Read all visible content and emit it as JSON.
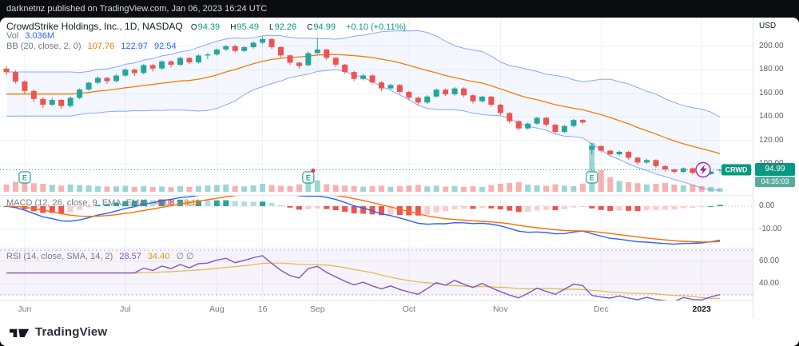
{
  "publish_bar": {
    "text": "darknetnz published on TradingView.com, Jan 06, 2023 16:24 UTC"
  },
  "header": {
    "title": "CrowdStrike Holdings, Inc., 1D, NASDAQ",
    "ohlc": [
      {
        "label": "O",
        "value": "94.39"
      },
      {
        "label": "H",
        "value": "95.49"
      },
      {
        "label": "L",
        "value": "92.26"
      },
      {
        "label": "C",
        "value": "94.99"
      }
    ],
    "change": "+0.10 (+0.11%)",
    "volume": {
      "label": "Vol",
      "value": "3.036M"
    },
    "bb": {
      "label": "BB (20, close, 2, 0)",
      "values": [
        "107.76",
        "122.97",
        "92.54"
      ]
    }
  },
  "macd_panel": {
    "label": "MACD (12, 26, close, 9, EMA, EMA)",
    "values": [
      "-8.08",
      "-8.11"
    ],
    "axis_ticks": [
      "0.00",
      "-10.00"
    ]
  },
  "rsi_panel": {
    "label": "RSI (14, close, SMA, 14, 2)",
    "values": [
      "28.57",
      "34.40"
    ],
    "hidden_plots": "∅ ∅",
    "axis_ticks": [
      "60.00",
      "40.00"
    ]
  },
  "price_axis": {
    "currency": "USD",
    "symbol_badge": "CRWD",
    "last_price": "94.99",
    "countdown": "04:35:03"
  },
  "footer": {
    "brand": "TradingView"
  },
  "colors": {
    "candle_up": "#26a69a",
    "candle_down": "#ef5350",
    "accent_green": "#089981",
    "bb_band": "#2962ff",
    "bb_basis": "#f57c00",
    "macd_line": "#2962ff",
    "signal_line": "#ff6d00",
    "rsi_line": "#7e57c2",
    "rsi_sma": "#e0bb3f",
    "grid": "#eef1f6"
  },
  "chart_data": {
    "type": "candlestick",
    "symbol": "CRWD",
    "exchange": "NASDAQ",
    "interval": "1D",
    "title": "CrowdStrike Holdings, Inc., 1D, NASDAQ",
    "last": {
      "open": 94.39,
      "high": 95.49,
      "low": 92.26,
      "close": 94.99,
      "change": 0.1,
      "change_pct": 0.11
    },
    "y_axis": {
      "unit": "USD",
      "ticks": [
        200,
        180,
        160,
        140,
        120,
        100
      ],
      "visible_range": [
        88,
        224
      ]
    },
    "macd_axis": {
      "ticks": [
        0,
        -10
      ]
    },
    "rsi_axis": {
      "ticks": [
        60,
        40
      ],
      "bands": [
        70,
        30
      ]
    },
    "indicators": {
      "bollinger": {
        "length": 20,
        "source": "close",
        "mult": 2,
        "offset": 0,
        "basis": 107.76,
        "upper": 122.97,
        "lower": 92.54
      },
      "volume": {
        "last": "3.036M"
      },
      "macd": {
        "fast": 12,
        "slow": 26,
        "source": "close",
        "signal": 9,
        "ma_type": "EMA"
      },
      "rsi": {
        "length": 14,
        "source": "close",
        "smoothing": "SMA",
        "smoothing_length": 14,
        "last": 28.57
      }
    },
    "x_ticks": [
      {
        "label": "Jun",
        "i": 2
      },
      {
        "label": "Jul",
        "i": 13
      },
      {
        "label": "Aug",
        "i": 23
      },
      {
        "label": "16",
        "i": 28
      },
      {
        "label": "Sep",
        "i": 34
      },
      {
        "label": "Oct",
        "i": 44
      },
      {
        "label": "Nov",
        "i": 54
      },
      {
        "label": "Dec",
        "i": 65
      },
      {
        "label": "2023",
        "i": 76
      }
    ],
    "earnings_marker_indices": [
      2,
      33,
      64
    ],
    "ohlc": [
      [
        181.0,
        183.2,
        175.4,
        178.0
      ],
      [
        178.0,
        179.5,
        168.3,
        170.1
      ],
      [
        170.1,
        171.0,
        159.8,
        162.0
      ],
      [
        162.0,
        163.4,
        152.6,
        155.2
      ],
      [
        155.2,
        156.8,
        147.5,
        150.3
      ],
      [
        150.3,
        156.2,
        149.1,
        154.4
      ],
      [
        154.4,
        155.0,
        146.7,
        149.2
      ],
      [
        149.2,
        157.3,
        148.0,
        156.1
      ],
      [
        156.1,
        164.2,
        155.0,
        163.3
      ],
      [
        163.3,
        170.1,
        162.2,
        169.0
      ],
      [
        169.0,
        174.6,
        167.8,
        173.2
      ],
      [
        173.2,
        174.0,
        167.9,
        170.4
      ],
      [
        170.4,
        176.3,
        169.2,
        175.1
      ],
      [
        175.1,
        181.2,
        174.0,
        180.2
      ],
      [
        180.2,
        181.0,
        174.8,
        177.3
      ],
      [
        177.3,
        185.1,
        176.2,
        184.0
      ],
      [
        184.0,
        185.2,
        178.6,
        181.1
      ],
      [
        181.1,
        188.0,
        180.0,
        187.2
      ],
      [
        187.2,
        188.1,
        181.9,
        184.3
      ],
      [
        184.3,
        191.2,
        183.2,
        190.1
      ],
      [
        190.1,
        191.0,
        184.7,
        186.4
      ],
      [
        186.4,
        193.1,
        185.3,
        192.2
      ],
      [
        192.2,
        194.4,
        189.0,
        193.1
      ],
      [
        193.1,
        198.2,
        192.0,
        197.3
      ],
      [
        197.3,
        201.1,
        196.2,
        200.2
      ],
      [
        200.2,
        201.3,
        194.8,
        196.1
      ],
      [
        196.1,
        200.4,
        195.0,
        199.3
      ],
      [
        199.3,
        204.2,
        198.1,
        203.1
      ],
      [
        203.1,
        208.3,
        202.0,
        206.2
      ],
      [
        206.2,
        207.0,
        197.8,
        199.4
      ],
      [
        199.4,
        200.1,
        190.6,
        192.3
      ],
      [
        192.3,
        193.0,
        184.2,
        186.1
      ],
      [
        186.1,
        187.2,
        181.0,
        183.2
      ],
      [
        183.9,
        196.0,
        183.0,
        194.2
      ],
      [
        194.2,
        207.1,
        193.5,
        197.3
      ],
      [
        197.3,
        198.0,
        188.4,
        190.2
      ],
      [
        190.2,
        191.1,
        182.3,
        184.4
      ],
      [
        184.4,
        185.0,
        176.5,
        178.2
      ],
      [
        178.2,
        179.1,
        170.4,
        172.3
      ],
      [
        172.3,
        176.4,
        171.0,
        175.2
      ],
      [
        175.2,
        176.0,
        167.7,
        169.3
      ],
      [
        169.3,
        170.2,
        162.1,
        164.2
      ],
      [
        164.2,
        168.3,
        163.0,
        167.1
      ],
      [
        167.1,
        168.0,
        159.6,
        161.2
      ],
      [
        161.2,
        162.1,
        154.4,
        156.3
      ],
      [
        156.3,
        157.2,
        150.1,
        152.2
      ],
      [
        152.2,
        158.4,
        151.0,
        157.3
      ],
      [
        157.3,
        164.2,
        156.1,
        163.1
      ],
      [
        163.1,
        164.0,
        157.6,
        159.2
      ],
      [
        159.2,
        165.3,
        158.0,
        164.2
      ],
      [
        164.2,
        165.1,
        156.7,
        158.3
      ],
      [
        158.3,
        159.0,
        151.4,
        153.2
      ],
      [
        153.2,
        158.1,
        152.0,
        157.2
      ],
      [
        157.2,
        158.0,
        148.6,
        150.3
      ],
      [
        150.3,
        151.2,
        141.5,
        143.2
      ],
      [
        143.2,
        144.1,
        134.6,
        136.3
      ],
      [
        136.3,
        137.0,
        128.2,
        130.1
      ],
      [
        130.1,
        135.2,
        129.0,
        134.2
      ],
      [
        134.2,
        140.1,
        133.1,
        139.2
      ],
      [
        139.2,
        140.0,
        131.6,
        133.3
      ],
      [
        133.3,
        134.2,
        125.4,
        127.2
      ],
      [
        127.2,
        133.1,
        126.0,
        132.2
      ],
      [
        132.2,
        138.2,
        131.1,
        137.3
      ],
      [
        137.3,
        138.0,
        133.6,
        135.2
      ],
      [
        112.0,
        117.3,
        108.2,
        115.1
      ],
      [
        115.1,
        115.8,
        109.6,
        111.2
      ],
      [
        111.2,
        112.0,
        106.4,
        108.1
      ],
      [
        108.1,
        111.3,
        107.0,
        110.2
      ],
      [
        110.2,
        111.0,
        103.6,
        105.2
      ],
      [
        105.2,
        106.1,
        99.4,
        101.1
      ],
      [
        101.1,
        104.2,
        100.0,
        103.2
      ],
      [
        103.2,
        104.0,
        96.6,
        98.1
      ],
      [
        98.1,
        99.0,
        93.5,
        95.2
      ],
      [
        95.2,
        96.1,
        91.8,
        93.1
      ],
      [
        93.1,
        97.0,
        92.2,
        96.2
      ],
      [
        96.2,
        97.0,
        90.9,
        92.3
      ],
      [
        92.3,
        93.2,
        89.6,
        91.3
      ],
      [
        91.3,
        94.1,
        90.4,
        93.4
      ],
      [
        94.39,
        95.49,
        92.26,
        94.99
      ]
    ],
    "volume_millions": [
      6.2,
      8.4,
      9.1,
      7.3,
      6.8,
      5.9,
      5.2,
      6.1,
      5.7,
      5.3,
      4.8,
      4.4,
      4.6,
      5.1,
      4.2,
      4.8,
      4.0,
      4.5,
      3.9,
      4.7,
      4.1,
      4.9,
      5.3,
      5.8,
      6.2,
      4.9,
      4.6,
      5.4,
      6.8,
      5.7,
      5.1,
      4.8,
      6.3,
      11.2,
      9.6,
      6.4,
      5.8,
      5.2,
      4.9,
      4.3,
      4.7,
      5.1,
      4.2,
      4.8,
      5.3,
      5.9,
      4.6,
      5.2,
      4.4,
      4.9,
      4.3,
      4.7,
      4.1,
      5.6,
      6.8,
      7.4,
      8.2,
      6.1,
      5.4,
      5.0,
      6.3,
      5.2,
      4.8,
      6.9,
      41.6,
      18.3,
      12.4,
      9.2,
      8.1,
      7.3,
      6.2,
      6.8,
      7.4,
      6.1,
      5.4,
      5.9,
      4.8,
      4.1,
      3.036
    ]
  }
}
